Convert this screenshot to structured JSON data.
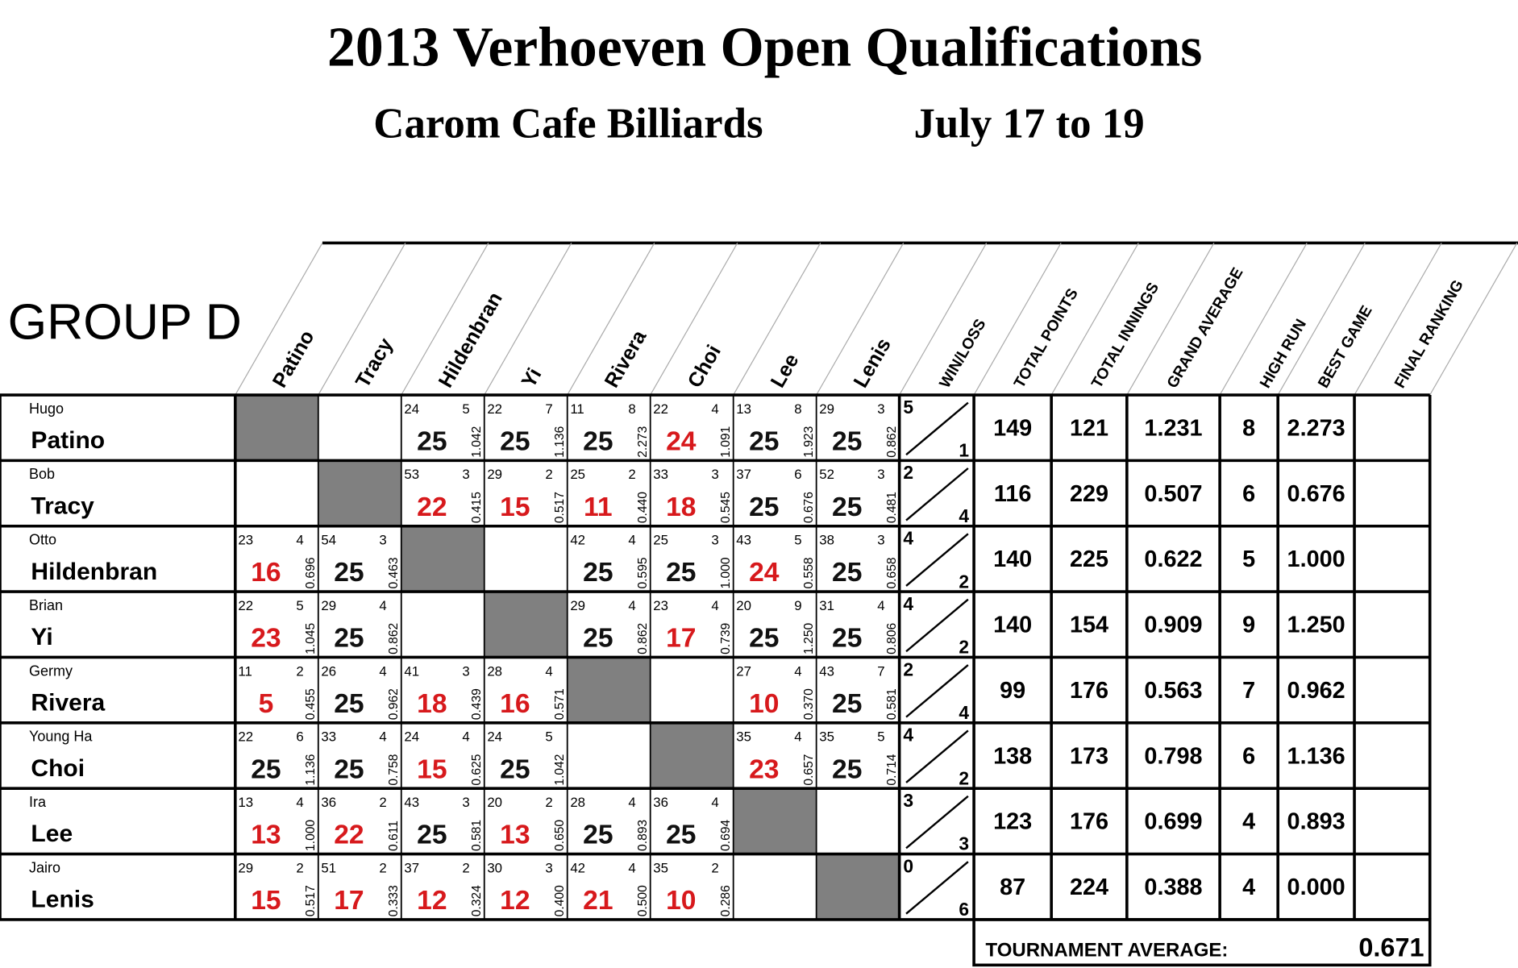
{
  "header": {
    "title": "2013 Verhoeven Open Qualifications",
    "venue": "Carom Cafe Billiards",
    "dates": "July 17 to 19"
  },
  "group": "GROUP D",
  "columns": [
    "Patino",
    "Tracy",
    "Hildenbran",
    "Yi",
    "Rivera",
    "Choi",
    "Lee",
    "Lenis"
  ],
  "stat_headers": [
    "WIN/LOSS",
    "TOTAL POINTS",
    "TOTAL INNINGS",
    "GRAND AVERAGE",
    "HIGH RUN",
    "BEST GAME",
    "FINAL RANKING"
  ],
  "rows": [
    {
      "first": "Hugo",
      "last": "Patino",
      "cells": [
        null,
        null,
        {
          "innings": 24,
          "high_run": 5,
          "points": 25,
          "average": "1.042"
        },
        {
          "innings": 22,
          "high_run": 7,
          "points": 25,
          "average": "1.136"
        },
        {
          "innings": 11,
          "high_run": 8,
          "points": 25,
          "average": "2.273"
        },
        {
          "innings": 22,
          "high_run": 4,
          "points": 24,
          "average": "1.091"
        },
        {
          "innings": 13,
          "high_run": 8,
          "points": 25,
          "average": "1.923"
        },
        {
          "innings": 29,
          "high_run": 3,
          "points": 25,
          "average": "0.862"
        }
      ],
      "wins": 5,
      "losses": 1,
      "total_points": 149,
      "total_innings": 121,
      "grand_average": "1.231",
      "high_run": 8,
      "best_game": "2.273"
    },
    {
      "first": "Bob",
      "last": "Tracy",
      "cells": [
        null,
        null,
        {
          "innings": 53,
          "high_run": 3,
          "points": 22,
          "average": "0.415"
        },
        {
          "innings": 29,
          "high_run": 2,
          "points": 15,
          "average": "0.517"
        },
        {
          "innings": 25,
          "high_run": 2,
          "points": 11,
          "average": "0.440"
        },
        {
          "innings": 33,
          "high_run": 3,
          "points": 18,
          "average": "0.545"
        },
        {
          "innings": 37,
          "high_run": 6,
          "points": 25,
          "average": "0.676"
        },
        {
          "innings": 52,
          "high_run": 3,
          "points": 25,
          "average": "0.481"
        }
      ],
      "wins": 2,
      "losses": 4,
      "total_points": 116,
      "total_innings": 229,
      "grand_average": "0.507",
      "high_run": 6,
      "best_game": "0.676"
    },
    {
      "first": "Otto",
      "last": "Hildenbran",
      "cells": [
        {
          "innings": 23,
          "high_run": 4,
          "points": 16,
          "average": "0.696"
        },
        {
          "innings": 54,
          "high_run": 3,
          "points": 25,
          "average": "0.463"
        },
        null,
        null,
        {
          "innings": 42,
          "high_run": 4,
          "points": 25,
          "average": "0.595"
        },
        {
          "innings": 25,
          "high_run": 3,
          "points": 25,
          "average": "1.000"
        },
        {
          "innings": 43,
          "high_run": 5,
          "points": 24,
          "average": "0.558"
        },
        {
          "innings": 38,
          "high_run": 3,
          "points": 25,
          "average": "0.658"
        }
      ],
      "wins": 4,
      "losses": 2,
      "total_points": 140,
      "total_innings": 225,
      "grand_average": "0.622",
      "high_run": 5,
      "best_game": "1.000"
    },
    {
      "first": "Brian",
      "last": "Yi",
      "cells": [
        {
          "innings": 22,
          "high_run": 5,
          "points": 23,
          "average": "1.045"
        },
        {
          "innings": 29,
          "high_run": 4,
          "points": 25,
          "average": "0.862"
        },
        null,
        null,
        {
          "innings": 29,
          "high_run": 4,
          "points": 25,
          "average": "0.862"
        },
        {
          "innings": 23,
          "high_run": 4,
          "points": 17,
          "average": "0.739"
        },
        {
          "innings": 20,
          "high_run": 9,
          "points": 25,
          "average": "1.250"
        },
        {
          "innings": 31,
          "high_run": 4,
          "points": 25,
          "average": "0.806"
        }
      ],
      "wins": 4,
      "losses": 2,
      "total_points": 140,
      "total_innings": 154,
      "grand_average": "0.909",
      "high_run": 9,
      "best_game": "1.250"
    },
    {
      "first": "Germy",
      "last": "Rivera",
      "cells": [
        {
          "innings": 11,
          "high_run": 2,
          "points": 5,
          "average": "0.455"
        },
        {
          "innings": 26,
          "high_run": 4,
          "points": 25,
          "average": "0.962"
        },
        {
          "innings": 41,
          "high_run": 3,
          "points": 18,
          "average": "0.439"
        },
        {
          "innings": 28,
          "high_run": 4,
          "points": 16,
          "average": "0.571"
        },
        null,
        null,
        {
          "innings": 27,
          "high_run": 4,
          "points": 10,
          "average": "0.370"
        },
        {
          "innings": 43,
          "high_run": 7,
          "points": 25,
          "average": "0.581"
        }
      ],
      "wins": 2,
      "losses": 4,
      "total_points": 99,
      "total_innings": 176,
      "grand_average": "0.563",
      "high_run": 7,
      "best_game": "0.962"
    },
    {
      "first": "Young Ha",
      "last": "Choi",
      "cells": [
        {
          "innings": 22,
          "high_run": 6,
          "points": 25,
          "average": "1.136"
        },
        {
          "innings": 33,
          "high_run": 4,
          "points": 25,
          "average": "0.758"
        },
        {
          "innings": 24,
          "high_run": 4,
          "points": 15,
          "average": "0.625"
        },
        {
          "innings": 24,
          "high_run": 5,
          "points": 25,
          "average": "1.042"
        },
        null,
        null,
        {
          "innings": 35,
          "high_run": 4,
          "points": 23,
          "average": "0.657"
        },
        {
          "innings": 35,
          "high_run": 5,
          "points": 25,
          "average": "0.714"
        }
      ],
      "wins": 4,
      "losses": 2,
      "total_points": 138,
      "total_innings": 173,
      "grand_average": "0.798",
      "high_run": 6,
      "best_game": "1.136"
    },
    {
      "first": "Ira",
      "last": "Lee",
      "cells": [
        {
          "innings": 13,
          "high_run": 4,
          "points": 13,
          "average": "1.000"
        },
        {
          "innings": 36,
          "high_run": 2,
          "points": 22,
          "average": "0.611"
        },
        {
          "innings": 43,
          "high_run": 3,
          "points": 25,
          "average": "0.581"
        },
        {
          "innings": 20,
          "high_run": 2,
          "points": 13,
          "average": "0.650"
        },
        {
          "innings": 28,
          "high_run": 4,
          "points": 25,
          "average": "0.893"
        },
        {
          "innings": 36,
          "high_run": 4,
          "points": 25,
          "average": "0.694"
        },
        null,
        null
      ],
      "wins": 3,
      "losses": 3,
      "total_points": 123,
      "total_innings": 176,
      "grand_average": "0.699",
      "high_run": 4,
      "best_game": "0.893"
    },
    {
      "first": "Jairo",
      "last": "Lenis",
      "cells": [
        {
          "innings": 29,
          "high_run": 2,
          "points": 15,
          "average": "0.517"
        },
        {
          "innings": 51,
          "high_run": 2,
          "points": 17,
          "average": "0.333"
        },
        {
          "innings": 37,
          "high_run": 2,
          "points": 12,
          "average": "0.324"
        },
        {
          "innings": 30,
          "high_run": 3,
          "points": 12,
          "average": "0.400"
        },
        {
          "innings": 42,
          "high_run": 4,
          "points": 21,
          "average": "0.500"
        },
        {
          "innings": 35,
          "high_run": 2,
          "points": 10,
          "average": "0.286"
        },
        null,
        null
      ],
      "wins": 0,
      "losses": 6,
      "total_points": 87,
      "total_innings": 224,
      "grand_average": "0.388",
      "high_run": 4,
      "best_game": "0.000"
    }
  ],
  "tournament_average": {
    "label": "TOURNAMENT AVERAGE:",
    "value": "0.671"
  },
  "colors": {
    "win": "#111111",
    "loss": "#d7191c",
    "self": "#808080"
  }
}
